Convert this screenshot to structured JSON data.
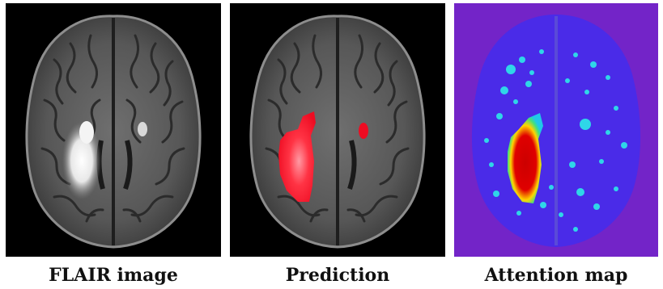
{
  "panels": [
    {
      "caption": "FLAIR image"
    },
    {
      "caption": "Prediction"
    },
    {
      "caption": "Attention map"
    }
  ],
  "colors": {
    "background": "#000000",
    "prediction_overlay": "#ff1a2e",
    "attention_background": "#4a2be8",
    "attention_hotspot": "#d80000"
  }
}
